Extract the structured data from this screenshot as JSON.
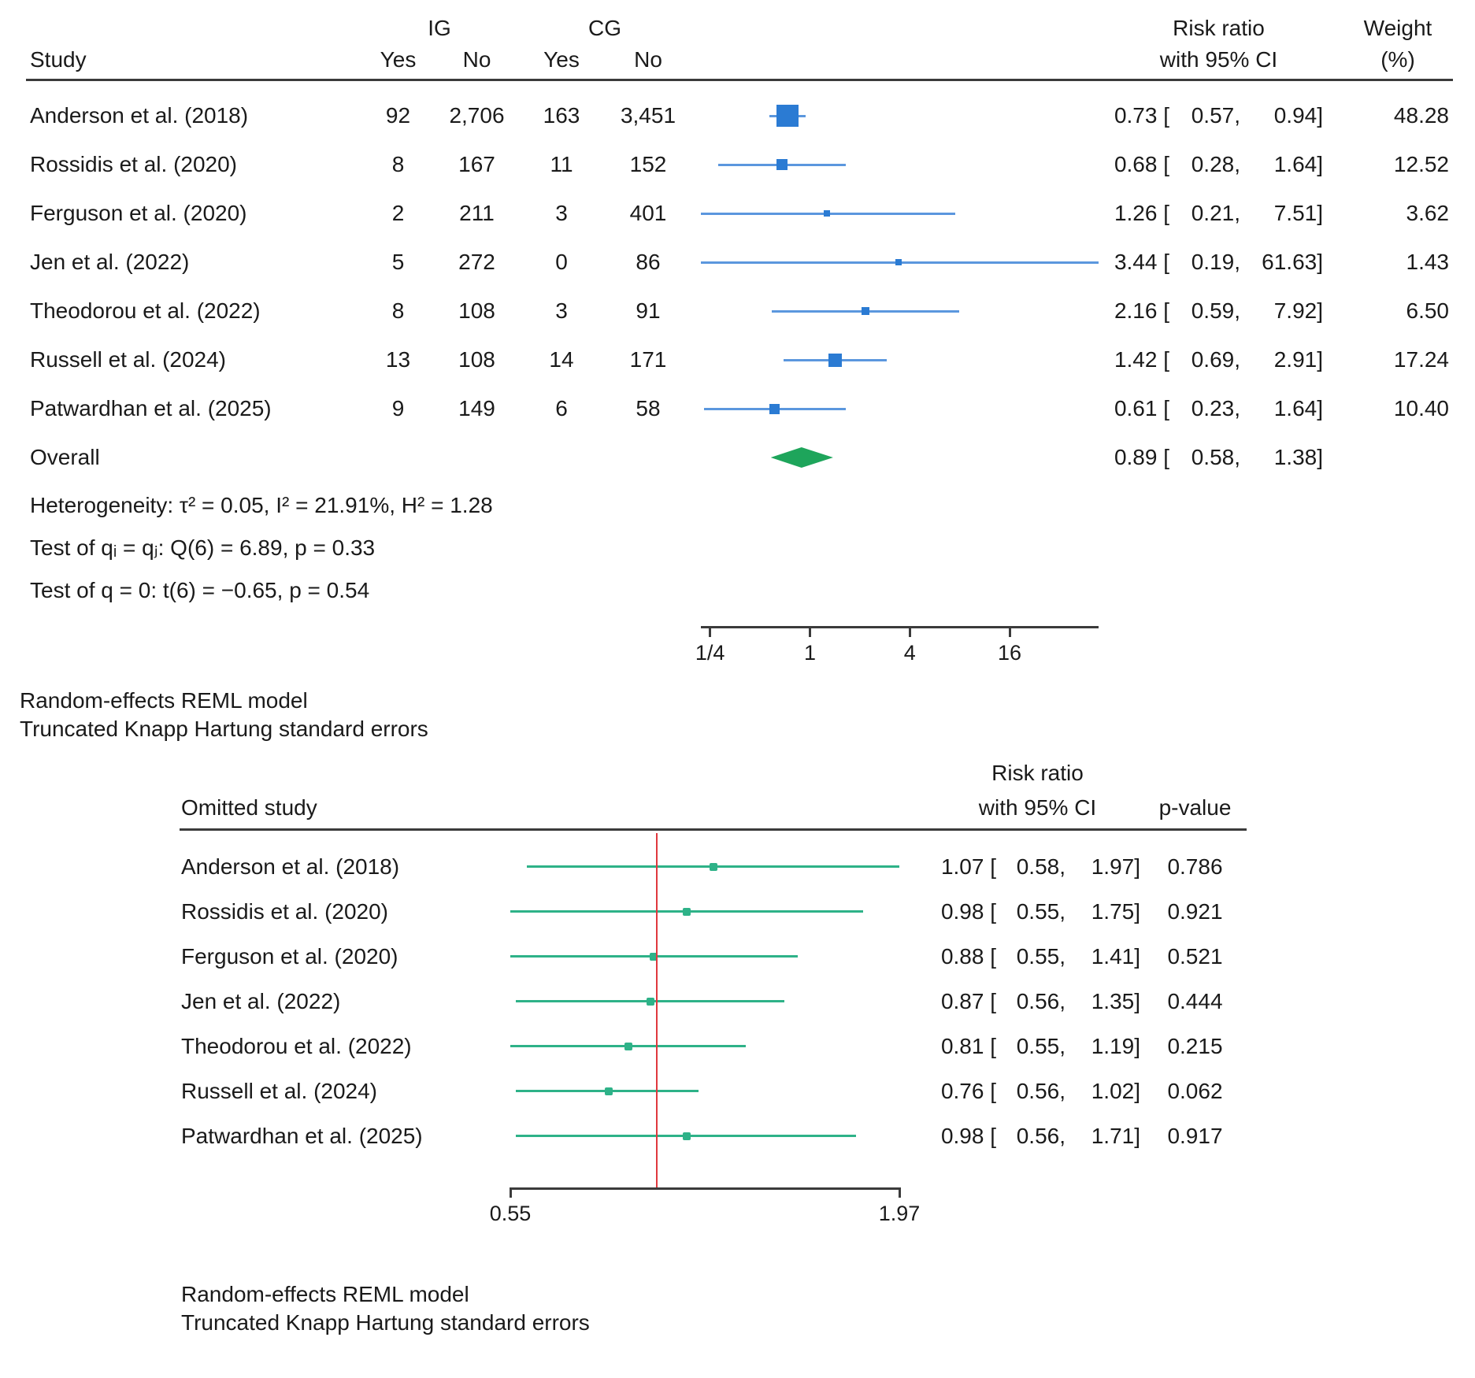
{
  "colors": {
    "text": "#1a1a1a",
    "rule": "#3b3b3b",
    "axis": "#3b3b3b",
    "marker_blue": "#2b7bd3",
    "ci_blue": "#5b97de",
    "diamond_green": "#1ea55b",
    "loo_green": "#2eb288",
    "ref_red": "#e0383e"
  },
  "chart_data": [
    {
      "type": "forest",
      "x_scale": "log",
      "headers": {
        "study": "Study",
        "ig": "IG",
        "cg": "CG",
        "yes": "Yes",
        "no": "No",
        "rr_line1": "Risk ratio",
        "rr_line2": "with 95% CI",
        "weight_line1": "Weight",
        "weight_line2": "(%)"
      },
      "studies": [
        "Anderson et al. (2018)",
        "Rossidis et al. (2020)",
        "Ferguson et al. (2020)",
        "Jen et al. (2022)",
        "Theodorou et al. (2022)",
        "Russell et al. (2024)",
        "Patwardhan et al. (2025)"
      ],
      "ig_yes": [
        "92",
        "8",
        "2",
        "5",
        "8",
        "13",
        "9"
      ],
      "ig_no": [
        "2,706",
        "167",
        "211",
        "272",
        "108",
        "108",
        "149"
      ],
      "cg_yes": [
        "163",
        "11",
        "3",
        "0",
        "3",
        "14",
        "6"
      ],
      "cg_no": [
        "3,451",
        "152",
        "401",
        "86",
        "91",
        "171",
        "58"
      ],
      "rr": [
        "0.73",
        "0.68",
        "1.26",
        "3.44",
        "2.16",
        "1.42",
        "0.61"
      ],
      "ci_low": [
        "0.57",
        "0.28",
        "0.21",
        "0.19",
        "0.59",
        "0.69",
        "0.23"
      ],
      "ci_high": [
        "0.94",
        "1.64",
        "7.51",
        "61.63",
        "7.92",
        "2.91",
        "1.64"
      ],
      "weights": [
        "48.28",
        "12.52",
        "3.62",
        "1.43",
        "6.50",
        "17.24",
        "10.40"
      ],
      "overall": {
        "label": "Overall",
        "rr": "0.89",
        "ci_low": "0.58",
        "ci_high": "1.38"
      },
      "x_ticks": [
        "1/4",
        "1",
        "4",
        "16"
      ],
      "x_tick_values": [
        0.25,
        1,
        4,
        16
      ],
      "stats": [
        "Heterogeneity: τ² = 0.05, I² = 21.91%, H² = 1.28",
        "Test of qᵢ = qⱼ: Q(6) = 6.89, p = 0.33",
        "Test of q = 0: t(6) = −0.65, p = 0.54"
      ],
      "footnotes": [
        "Random-effects REML model",
        "Truncated Knapp Hartung standard errors"
      ]
    },
    {
      "type": "forest",
      "x_scale": "log",
      "headers": {
        "omitted_study": "Omitted study",
        "rr_line1": "Risk ratio",
        "rr_line2": "with 95% CI",
        "p_value": "p-value"
      },
      "studies": [
        "Anderson et al. (2018)",
        "Rossidis et al. (2020)",
        "Ferguson et al. (2020)",
        "Jen et al. (2022)",
        "Theodorou et al. (2022)",
        "Russell et al. (2024)",
        "Patwardhan et al. (2025)"
      ],
      "rr": [
        "1.07",
        "0.98",
        "0.88",
        "0.87",
        "0.81",
        "0.76",
        "0.98"
      ],
      "ci_low": [
        "0.58",
        "0.55",
        "0.55",
        "0.56",
        "0.55",
        "0.56",
        "0.56"
      ],
      "ci_high": [
        "1.97",
        "1.75",
        "1.41",
        "1.35",
        "1.19",
        "1.02",
        "1.71"
      ],
      "p_values": [
        "0.786",
        "0.921",
        "0.521",
        "0.444",
        "0.215",
        "0.062",
        "0.917"
      ],
      "x_ticks": [
        "0.55",
        "1.97"
      ],
      "x_tick_values": [
        0.55,
        1.97
      ],
      "ref_line": 0.89,
      "footnotes": [
        "Random-effects REML model",
        "Truncated Knapp Hartung standard errors"
      ]
    }
  ]
}
